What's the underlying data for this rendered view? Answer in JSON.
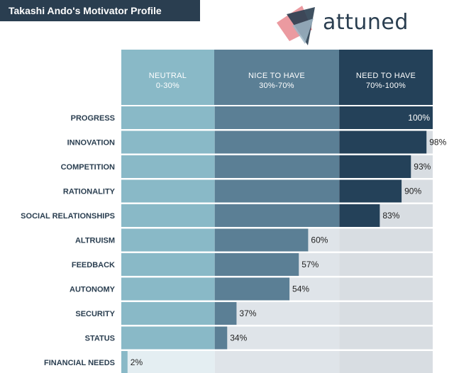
{
  "title": "Takashi Ando's Motivator Profile",
  "logo": {
    "text": "attuned",
    "icon": "attuned-logo-icon"
  },
  "bands": [
    {
      "label": "NEUTRAL",
      "range": "0-30%",
      "from": 0,
      "to": 30
    },
    {
      "label": "NICE TO HAVE",
      "range": "30%-70%",
      "from": 30,
      "to": 70
    },
    {
      "label": "NEED TO HAVE",
      "range": "70%-100%",
      "from": 70,
      "to": 100
    }
  ],
  "colors": {
    "band_filled": [
      "#89b9c7",
      "#5b7f95",
      "#244159"
    ],
    "band_empty": [
      "#e4eef2",
      "#dfe4e9",
      "#d8dde2"
    ],
    "title_bg": "#2a3e50",
    "text": "#2a3e50"
  },
  "chart_data": {
    "type": "bar",
    "orientation": "horizontal",
    "title": "Takashi Ando's Motivator Profile",
    "categories": [
      "PROGRESS",
      "INNOVATION",
      "COMPETITION",
      "RATIONALITY",
      "SOCIAL RELATIONSHIPS",
      "ALTRUISM",
      "FEEDBACK",
      "AUTONOMY",
      "SECURITY",
      "STATUS",
      "FINANCIAL NEEDS"
    ],
    "values": [
      100,
      98,
      93,
      90,
      83,
      60,
      57,
      54,
      37,
      34,
      2
    ],
    "value_labels": [
      "100%",
      "98%",
      "93%",
      "90%",
      "83%",
      "60%",
      "57%",
      "54%",
      "37%",
      "34%",
      "2%"
    ],
    "xlim": [
      0,
      100
    ],
    "grid": false
  }
}
